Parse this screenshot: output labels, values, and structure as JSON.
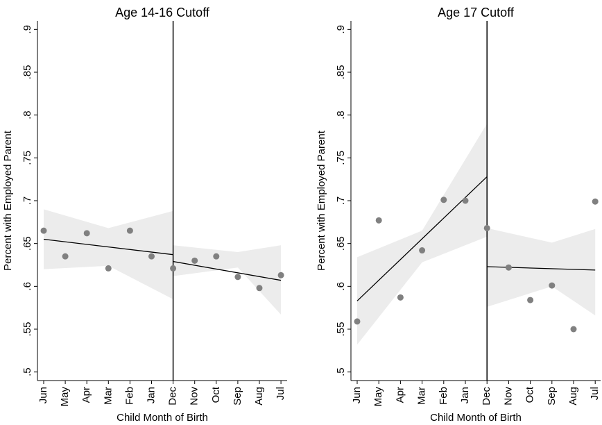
{
  "chart_data": [
    {
      "type": "scatter",
      "title": "Age 14-16 Cutoff",
      "x_label": "Child Month of Birth",
      "y_label": "Percent with Employed Parent",
      "categories": [
        "Jun",
        "May",
        "Apr",
        "Mar",
        "Feb",
        "Jan",
        "Dec",
        "Nov",
        "Oct",
        "Sep",
        "Aug",
        "Jul"
      ],
      "values": [
        0.665,
        0.635,
        0.662,
        0.621,
        0.665,
        0.635,
        0.621,
        0.63,
        0.635,
        0.611,
        0.598,
        0.613
      ],
      "color": "#808080",
      "line_color": "#000000",
      "band_color": "#ececec",
      "cutoff_index": 6,
      "fits": [
        {
          "x": [
            0,
            6
          ],
          "values": [
            0.655,
            0.637
          ]
        },
        {
          "x": [
            6,
            11
          ],
          "values": [
            0.629,
            0.607
          ]
        }
      ],
      "bands": [
        {
          "x": [
            0,
            3,
            6
          ],
          "lower": [
            0.62,
            0.624,
            0.585
          ],
          "upper": [
            0.69,
            0.668,
            0.688
          ]
        },
        {
          "x": [
            6,
            9,
            11
          ],
          "lower": [
            0.612,
            0.622,
            0.567
          ],
          "upper": [
            0.648,
            0.64,
            0.648
          ]
        }
      ],
      "ylim": [
        0.49,
        0.91
      ],
      "yticks": [
        {
          "value": 0.5,
          "label": ".5"
        },
        {
          "value": 0.55,
          "label": ".55"
        },
        {
          "value": 0.6,
          "label": ".6"
        },
        {
          "value": 0.65,
          "label": ".65"
        },
        {
          "value": 0.7,
          "label": ".7"
        },
        {
          "value": 0.75,
          "label": ".75"
        },
        {
          "value": 0.8,
          "label": ".8"
        },
        {
          "value": 0.85,
          "label": ".85"
        },
        {
          "value": 0.9,
          "label": ".9"
        }
      ]
    },
    {
      "type": "scatter",
      "title": "Age 17 Cutoff",
      "x_label": "Child Month of Birth",
      "y_label": "Percent with Employed Parent",
      "categories": [
        "Jun",
        "May",
        "Apr",
        "Mar",
        "Feb",
        "Jan",
        "Dec",
        "Nov",
        "Oct",
        "Sep",
        "Aug",
        "Jul"
      ],
      "values": [
        0.559,
        0.677,
        0.587,
        0.642,
        0.701,
        0.7,
        0.668,
        0.622,
        0.584,
        0.601,
        0.55,
        0.699
      ],
      "color": "#808080",
      "line_color": "#000000",
      "band_color": "#ececec",
      "cutoff_index": 6,
      "fits": [
        {
          "x": [
            0,
            6
          ],
          "values": [
            0.583,
            0.728
          ]
        },
        {
          "x": [
            6,
            11
          ],
          "values": [
            0.623,
            0.619
          ]
        }
      ],
      "bands": [
        {
          "x": [
            0,
            3,
            6
          ],
          "lower": [
            0.532,
            0.628,
            0.658
          ],
          "upper": [
            0.634,
            0.665,
            0.79
          ]
        },
        {
          "x": [
            6,
            9,
            11
          ],
          "lower": [
            0.576,
            0.6,
            0.566
          ],
          "upper": [
            0.668,
            0.651,
            0.667
          ]
        }
      ],
      "ylim": [
        0.49,
        0.91
      ],
      "yticks": [
        {
          "value": 0.5,
          "label": ".5"
        },
        {
          "value": 0.55,
          "label": ".55"
        },
        {
          "value": 0.6,
          "label": ".6"
        },
        {
          "value": 0.65,
          "label": ".65"
        },
        {
          "value": 0.7,
          "label": ".7"
        },
        {
          "value": 0.75,
          "label": ".75"
        },
        {
          "value": 0.8,
          "label": ".8"
        },
        {
          "value": 0.85,
          "label": ".85"
        },
        {
          "value": 0.9,
          "label": ".9"
        }
      ]
    }
  ]
}
